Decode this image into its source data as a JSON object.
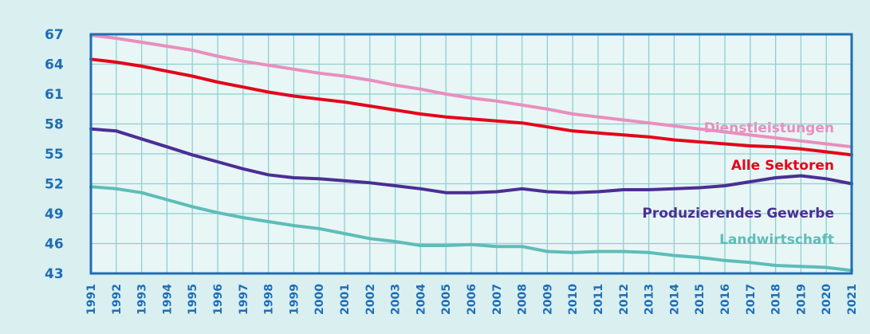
{
  "chart_data": {
    "type": "line",
    "x": [
      "1991",
      "1992",
      "1993",
      "1994",
      "1995",
      "1996",
      "1997",
      "1998",
      "1999",
      "2000",
      "2001",
      "2002",
      "2003",
      "2004",
      "2005",
      "2006",
      "2007",
      "2008",
      "2009",
      "2010",
      "2011",
      "2012",
      "2013",
      "2014",
      "2015",
      "2016",
      "2017",
      "2018",
      "2019",
      "2020",
      "2021"
    ],
    "ylim": [
      43,
      67
    ],
    "yticks": [
      "67",
      "64",
      "61",
      "58",
      "55",
      "52",
      "49",
      "46",
      "43"
    ],
    "grid": true,
    "colors": {
      "axis": "#1e6db4",
      "grid": "#8fcfd0",
      "plot_bg": "#e8f6f6",
      "tick_text": "#1e6db4"
    },
    "series": [
      {
        "name": "Dienstleistungen",
        "color": "#e88fbd",
        "values": [
          66.9,
          66.6,
          66.2,
          65.8,
          65.4,
          64.8,
          64.3,
          63.9,
          63.5,
          63.1,
          62.8,
          62.4,
          61.9,
          61.5,
          61.0,
          60.6,
          60.3,
          59.9,
          59.5,
          59.0,
          58.7,
          58.4,
          58.1,
          57.8,
          57.5,
          57.2,
          56.9,
          56.6,
          56.3,
          56.0,
          55.7
        ]
      },
      {
        "name": "Alle Sektoren",
        "color": "#e3061a",
        "values": [
          64.5,
          64.2,
          63.8,
          63.3,
          62.8,
          62.2,
          61.7,
          61.2,
          60.8,
          60.5,
          60.2,
          59.8,
          59.4,
          59.0,
          58.7,
          58.5,
          58.3,
          58.1,
          57.7,
          57.3,
          57.1,
          56.9,
          56.7,
          56.4,
          56.2,
          56.0,
          55.8,
          55.7,
          55.5,
          55.2,
          54.9
        ]
      },
      {
        "name": "Produzierendes Gewerbe",
        "color": "#4b2e93",
        "values": [
          57.5,
          57.3,
          56.5,
          55.7,
          54.9,
          54.2,
          53.5,
          52.9,
          52.6,
          52.5,
          52.3,
          52.1,
          51.8,
          51.5,
          51.1,
          51.1,
          51.2,
          51.5,
          51.2,
          51.1,
          51.2,
          51.4,
          51.4,
          51.5,
          51.6,
          51.8,
          52.2,
          52.6,
          52.8,
          52.5,
          52.0
        ]
      },
      {
        "name": "Landwirtschaft",
        "color": "#5ebdb8",
        "values": [
          51.7,
          51.5,
          51.1,
          50.4,
          49.7,
          49.1,
          48.6,
          48.2,
          47.8,
          47.5,
          47.0,
          46.5,
          46.2,
          45.8,
          45.8,
          45.9,
          45.7,
          45.7,
          45.2,
          45.1,
          45.2,
          45.2,
          45.1,
          44.8,
          44.6,
          44.3,
          44.1,
          43.8,
          43.7,
          43.6,
          43.3
        ]
      }
    ]
  }
}
